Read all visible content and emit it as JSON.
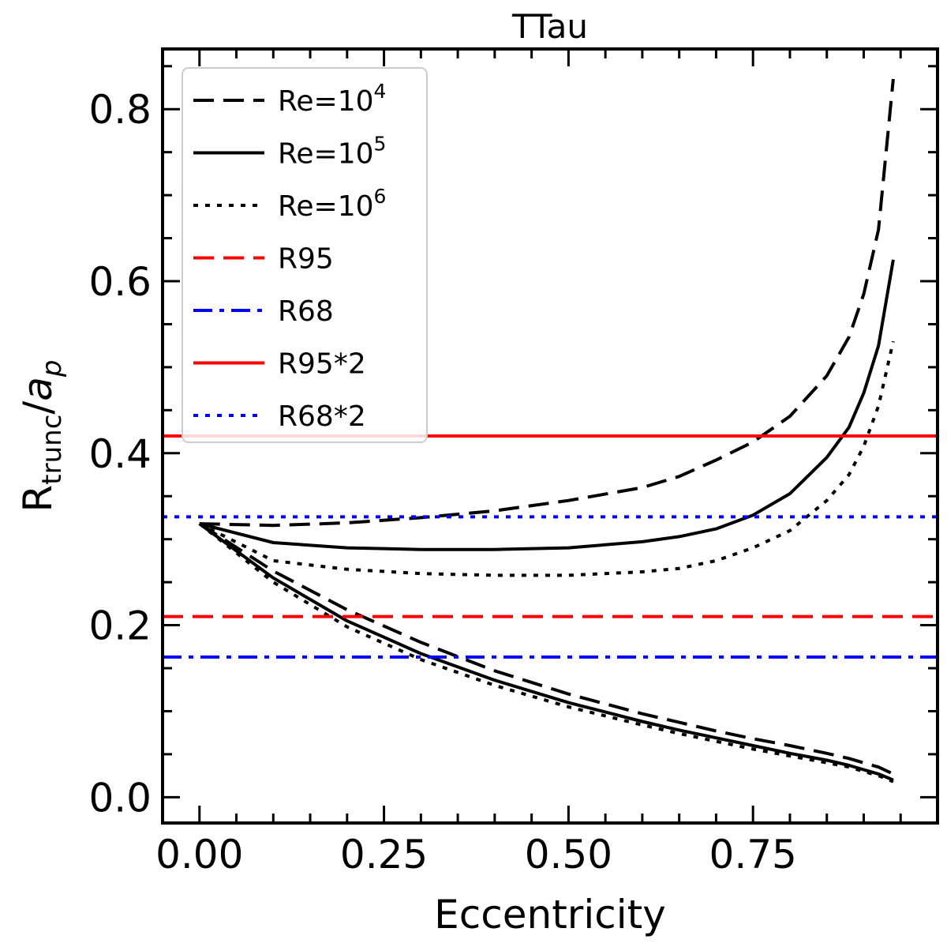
{
  "chart_data": {
    "type": "line",
    "title": "TTau",
    "xlabel": "Eccentricity",
    "ylabel": {
      "main": "R",
      "sub": "trunc",
      "sep": "/",
      "ital": "a",
      "ital_sub": "p"
    },
    "xlim": [
      -0.05,
      1.0
    ],
    "ylim": [
      -0.03,
      0.87
    ],
    "x_ticks": [
      0.0,
      0.25,
      0.5,
      0.75
    ],
    "x_tick_labels": [
      "0.00",
      "0.25",
      "0.50",
      "0.75"
    ],
    "y_ticks": [
      0.0,
      0.2,
      0.4,
      0.6,
      0.8
    ],
    "y_tick_labels": [
      "0.0",
      "0.2",
      "0.4",
      "0.6",
      "0.8"
    ],
    "grid": false,
    "legend_position": "top-left",
    "series": [
      {
        "label_base": "Re=10",
        "label_exp": "4",
        "color": "#000000",
        "style": "dashed",
        "x": [
          0.0,
          0.1,
          0.2,
          0.3,
          0.4,
          0.5,
          0.6,
          0.65,
          0.7,
          0.75,
          0.8,
          0.85,
          0.88,
          0.9,
          0.92,
          0.94
        ],
        "upper": [
          0.318,
          0.316,
          0.319,
          0.325,
          0.333,
          0.345,
          0.36,
          0.373,
          0.392,
          0.413,
          0.443,
          0.49,
          0.535,
          0.585,
          0.66,
          0.835
        ],
        "lower": [
          0.318,
          0.263,
          0.218,
          0.18,
          0.147,
          0.12,
          0.097,
          0.087,
          0.077,
          0.068,
          0.06,
          0.051,
          0.045,
          0.04,
          0.035,
          0.027
        ]
      },
      {
        "label_base": "Re=10",
        "label_exp": "5",
        "color": "#000000",
        "style": "solid",
        "x": [
          0.0,
          0.1,
          0.2,
          0.3,
          0.4,
          0.5,
          0.6,
          0.65,
          0.7,
          0.75,
          0.8,
          0.85,
          0.88,
          0.9,
          0.92,
          0.94
        ],
        "upper": [
          0.318,
          0.296,
          0.29,
          0.288,
          0.288,
          0.29,
          0.297,
          0.303,
          0.312,
          0.328,
          0.353,
          0.395,
          0.43,
          0.47,
          0.525,
          0.625
        ],
        "lower": [
          0.318,
          0.255,
          0.205,
          0.167,
          0.136,
          0.11,
          0.088,
          0.078,
          0.069,
          0.06,
          0.051,
          0.043,
          0.037,
          0.032,
          0.027,
          0.02
        ]
      },
      {
        "label_base": "Re=10",
        "label_exp": "6",
        "color": "#000000",
        "style": "dotted",
        "x": [
          0.0,
          0.1,
          0.2,
          0.3,
          0.4,
          0.5,
          0.6,
          0.65,
          0.7,
          0.75,
          0.8,
          0.85,
          0.88,
          0.9,
          0.92,
          0.94
        ],
        "upper": [
          0.318,
          0.275,
          0.265,
          0.26,
          0.258,
          0.258,
          0.262,
          0.266,
          0.275,
          0.29,
          0.31,
          0.345,
          0.375,
          0.408,
          0.455,
          0.53
        ],
        "lower": [
          0.318,
          0.25,
          0.198,
          0.16,
          0.13,
          0.105,
          0.084,
          0.074,
          0.065,
          0.056,
          0.048,
          0.04,
          0.035,
          0.03,
          0.025,
          0.018
        ]
      },
      {
        "label": "R95",
        "color": "#ff0000",
        "style": "dashed",
        "y": 0.21
      },
      {
        "label": "R68",
        "color": "#0000ff",
        "style": "dashdot",
        "y": 0.163
      },
      {
        "label": "R95*2",
        "color": "#ff0000",
        "style": "solid",
        "y": 0.42
      },
      {
        "label": "R68*2",
        "color": "#0000ff",
        "style": "dotted",
        "y": 0.326
      }
    ]
  }
}
